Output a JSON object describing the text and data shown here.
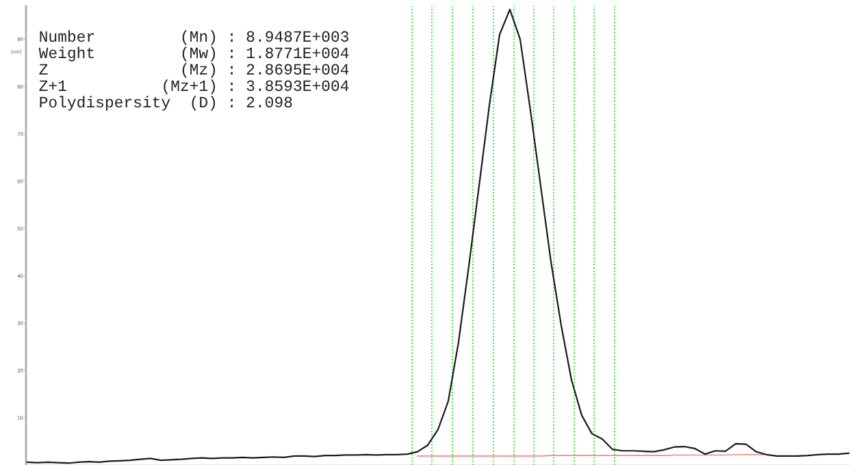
{
  "chart_data": {
    "type": "line",
    "ylabel": "(mV)",
    "categories": [
      null,
      null,
      null,
      null,
      null,
      null,
      null,
      null,
      null,
      null,
      null,
      null,
      null,
      null,
      null,
      null,
      null,
      null,
      null,
      null,
      null,
      null,
      null,
      null,
      null,
      null,
      null,
      null,
      null,
      null,
      null,
      null,
      null,
      null,
      null,
      null,
      null,
      null,
      null,
      null,
      null,
      null,
      null,
      null,
      null,
      null,
      null,
      null,
      null,
      null,
      null,
      null,
      null,
      null,
      null,
      null,
      null,
      null,
      null,
      null,
      null,
      null,
      null,
      null,
      null,
      null,
      null,
      null,
      null,
      null,
      null,
      null,
      null,
      null,
      null,
      null,
      null,
      null,
      null,
      null,
      null
    ],
    "series": [
      {
        "color": "#1a1a1a",
        "values": [
          0.6,
          0.5,
          0.6,
          0.5,
          0.4,
          0.6,
          0.7,
          0.6,
          0.8,
          0.9,
          1.0,
          1.2,
          1.4,
          1.0,
          1.1,
          1.2,
          1.4,
          1.5,
          1.4,
          1.5,
          1.5,
          1.6,
          1.5,
          1.6,
          1.7,
          1.6,
          1.9,
          1.9,
          1.8,
          2.0,
          2.0,
          2.1,
          2.1,
          2.2,
          2.1,
          2.2,
          2.2,
          2.3,
          2.8,
          4.2,
          7.5,
          13.5,
          26,
          42,
          59,
          76,
          91,
          96.3,
          90,
          75,
          59,
          43,
          29.5,
          18,
          10.5,
          6.6,
          5.5,
          3.3,
          3.0,
          3.0,
          2.9,
          2.8,
          3.2,
          3.8,
          3.9,
          3.5,
          2.3,
          3.0,
          2.9,
          4.5,
          4.4,
          2.8,
          2.2,
          1.9,
          1.9,
          1.9,
          2.0,
          2.2,
          2.3,
          2.3,
          2.5
        ]
      },
      {
        "color": "#ff8080",
        "values": [
          null,
          null,
          null,
          null,
          null,
          null,
          null,
          null,
          null,
          null,
          null,
          null,
          null,
          null,
          null,
          null,
          null,
          null,
          null,
          null,
          null,
          null,
          null,
          null,
          null,
          null,
          null,
          null,
          null,
          null,
          null,
          null,
          null,
          null,
          null,
          null,
          null,
          null,
          1.9,
          1.9,
          1.9,
          1.9,
          1.9,
          1.9,
          1.9,
          1.9,
          1.9,
          1.9,
          1.9,
          1.9,
          1.9,
          2.0,
          2.0,
          2.0,
          2.0,
          2.0,
          2.0,
          2.0,
          2.0,
          2.0,
          2.0,
          2.0,
          2.0,
          2.1,
          2.1,
          2.1,
          2.1,
          2.1,
          2.1,
          2.2,
          2.2,
          2.2,
          2.2,
          null,
          null,
          null,
          null,
          null,
          null,
          null,
          null
        ]
      }
    ],
    "ylim": [
      0,
      97
    ],
    "yticks": [
      10,
      20,
      30,
      40,
      50,
      60,
      70,
      80,
      90
    ],
    "grid": false,
    "legend": false,
    "annotations": [
      "Number         (Mn) : 8.9487E+003",
      "Weight         (Mw) : 1.8771E+004",
      "Z              (Mz) : 2.8695E+004",
      "Z+1          (Mz+1) : 3.8593E+004",
      "Polydispersity  (D) : 2.098"
    ],
    "tick_labels": "y"
  }
}
